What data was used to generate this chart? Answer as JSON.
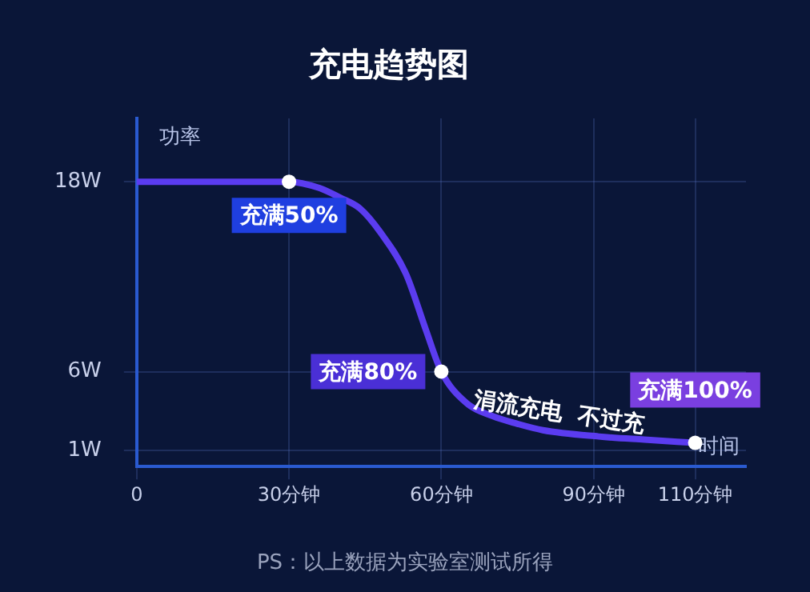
{
  "chart_data": {
    "type": "line",
    "title": "充电趋势图",
    "xlabel": "时间",
    "ylabel": "功率",
    "x": [
      0,
      30,
      36,
      40,
      44,
      48,
      53,
      57,
      60,
      65,
      70,
      75,
      80,
      91,
      100,
      110
    ],
    "series": [
      {
        "color": "#5b3cf0",
        "values": [
          18,
          18,
          17.6,
          17,
          16.3,
          14.8,
          12.2,
          8.6,
          6,
          4,
          3.2,
          2.7,
          2.3,
          1.9,
          1.7,
          1.5
        ]
      }
    ],
    "xlim": [
      0,
      120
    ],
    "xticks": [
      0,
      {
        "value": 30,
        "label": "30分钟"
      },
      {
        "value": 60,
        "label": "60分钟"
      },
      {
        "value": 90,
        "label": "90分钟"
      },
      {
        "value": 110,
        "label": "110分钟"
      }
    ],
    "ylim": [
      0,
      22
    ],
    "yticks": [
      {
        "value": 1,
        "label": "1W"
      },
      {
        "value": 6,
        "label": "6W"
      },
      {
        "value": 18,
        "label": "18W"
      }
    ],
    "grid": true,
    "marker": "none",
    "line_style": "solid",
    "annotations": [
      {
        "text": "充满50%",
        "x": 30,
        "y": 18
      },
      {
        "text": "充满80%",
        "x": 60,
        "y": 6
      },
      {
        "text": "充满100%",
        "x": 110,
        "y": 1.5
      },
      "涓流充电  不过充",
      "PS：以上数据为实验室测试所得"
    ]
  }
}
